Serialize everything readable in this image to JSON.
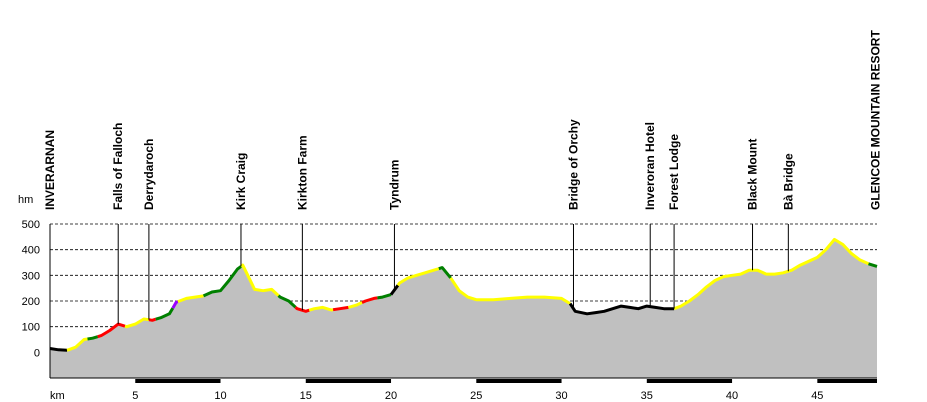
{
  "chart_data": {
    "type": "area",
    "ylabel": "hm",
    "xlabel": "km",
    "ylim": [
      -100,
      500
    ],
    "xlim": [
      0,
      48.5
    ],
    "y_ticks": [
      0,
      100,
      200,
      300,
      400,
      500
    ],
    "x_ticks": [
      5,
      10,
      15,
      20,
      25,
      30,
      35,
      40,
      45
    ],
    "grid": "horizontal-dashed",
    "fill_color": "#c0c0c0",
    "waypoints": [
      {
        "name": "INVERARNAN",
        "km": 0.0
      },
      {
        "name": "Falls of Falloch",
        "km": 4.0
      },
      {
        "name": "Derrydaroch",
        "km": 5.8
      },
      {
        "name": "Kirk Craig",
        "km": 11.2
      },
      {
        "name": "Kirkton Farm",
        "km": 14.8
      },
      {
        "name": "Tyndrum",
        "km": 20.2
      },
      {
        "name": "Bridge of Orchy",
        "km": 30.7
      },
      {
        "name": "Inveroran Hotel",
        "km": 35.2
      },
      {
        "name": "Forest Lodge",
        "km": 36.6
      },
      {
        "name": "Black Mount",
        "km": 41.2
      },
      {
        "name": "Bà Bridge",
        "km": 43.3
      },
      {
        "name": "GLENCOE MOUNTAIN RESORT",
        "km": 48.4
      }
    ],
    "profile": [
      [
        0.0,
        15
      ],
      [
        0.5,
        10
      ],
      [
        1.0,
        8
      ],
      [
        1.5,
        20
      ],
      [
        2.0,
        50
      ],
      [
        2.5,
        55
      ],
      [
        3.0,
        65
      ],
      [
        3.5,
        85
      ],
      [
        4.0,
        110
      ],
      [
        4.5,
        100
      ],
      [
        5.0,
        110
      ],
      [
        5.5,
        130
      ],
      [
        6.0,
        125
      ],
      [
        6.5,
        135
      ],
      [
        7.0,
        150
      ],
      [
        7.4,
        195
      ],
      [
        8.0,
        210
      ],
      [
        8.5,
        215
      ],
      [
        9.0,
        220
      ],
      [
        9.5,
        235
      ],
      [
        10.0,
        240
      ],
      [
        10.5,
        280
      ],
      [
        11.0,
        325
      ],
      [
        11.3,
        340
      ],
      [
        11.6,
        300
      ],
      [
        12.0,
        245
      ],
      [
        12.5,
        240
      ],
      [
        13.0,
        245
      ],
      [
        13.5,
        215
      ],
      [
        14.0,
        200
      ],
      [
        14.5,
        170
      ],
      [
        15.0,
        160
      ],
      [
        15.5,
        170
      ],
      [
        16.0,
        175
      ],
      [
        16.5,
        165
      ],
      [
        17.0,
        170
      ],
      [
        17.5,
        175
      ],
      [
        18.0,
        185
      ],
      [
        18.5,
        200
      ],
      [
        19.0,
        210
      ],
      [
        19.5,
        215
      ],
      [
        20.0,
        225
      ],
      [
        20.5,
        270
      ],
      [
        21.0,
        290
      ],
      [
        21.5,
        300
      ],
      [
        22.0,
        310
      ],
      [
        22.5,
        320
      ],
      [
        23.0,
        330
      ],
      [
        23.5,
        290
      ],
      [
        24.0,
        240
      ],
      [
        24.5,
        215
      ],
      [
        25.0,
        205
      ],
      [
        26.0,
        205
      ],
      [
        27.0,
        210
      ],
      [
        28.0,
        215
      ],
      [
        29.0,
        215
      ],
      [
        30.0,
        210
      ],
      [
        30.5,
        190
      ],
      [
        30.8,
        160
      ],
      [
        31.5,
        150
      ],
      [
        32.0,
        155
      ],
      [
        32.5,
        160
      ],
      [
        33.0,
        170
      ],
      [
        33.5,
        180
      ],
      [
        34.0,
        175
      ],
      [
        34.5,
        170
      ],
      [
        35.0,
        180
      ],
      [
        35.5,
        175
      ],
      [
        36.0,
        170
      ],
      [
        36.6,
        170
      ],
      [
        37.0,
        180
      ],
      [
        37.5,
        200
      ],
      [
        38.0,
        225
      ],
      [
        38.5,
        255
      ],
      [
        39.0,
        280
      ],
      [
        39.5,
        295
      ],
      [
        40.0,
        300
      ],
      [
        40.5,
        305
      ],
      [
        41.0,
        320
      ],
      [
        41.5,
        320
      ],
      [
        42.0,
        305
      ],
      [
        42.5,
        305
      ],
      [
        43.0,
        310
      ],
      [
        43.5,
        320
      ],
      [
        44.0,
        340
      ],
      [
        44.5,
        355
      ],
      [
        45.0,
        370
      ],
      [
        45.5,
        400
      ],
      [
        46.0,
        440
      ],
      [
        46.5,
        420
      ],
      [
        47.0,
        385
      ],
      [
        47.5,
        360
      ],
      [
        48.0,
        345
      ],
      [
        48.5,
        335
      ]
    ],
    "segment_colors": [
      {
        "from": 0.0,
        "to": 1.0,
        "color": "#000000"
      },
      {
        "from": 1.0,
        "to": 2.2,
        "color": "#ffff00"
      },
      {
        "from": 2.2,
        "to": 2.8,
        "color": "#008000"
      },
      {
        "from": 2.8,
        "to": 4.4,
        "color": "#ff0000"
      },
      {
        "from": 4.4,
        "to": 5.8,
        "color": "#ffff00"
      },
      {
        "from": 5.8,
        "to": 6.2,
        "color": "#ff0000"
      },
      {
        "from": 6.2,
        "to": 7.2,
        "color": "#008000"
      },
      {
        "from": 7.2,
        "to": 7.5,
        "color": "#9900ff"
      },
      {
        "from": 7.5,
        "to": 9.0,
        "color": "#ffff00"
      },
      {
        "from": 9.0,
        "to": 11.2,
        "color": "#008000"
      },
      {
        "from": 11.2,
        "to": 13.4,
        "color": "#ffff00"
      },
      {
        "from": 13.4,
        "to": 14.4,
        "color": "#008000"
      },
      {
        "from": 14.4,
        "to": 15.2,
        "color": "#ff0000"
      },
      {
        "from": 15.2,
        "to": 16.6,
        "color": "#ffff00"
      },
      {
        "from": 16.6,
        "to": 17.5,
        "color": "#ff0000"
      },
      {
        "from": 17.5,
        "to": 18.3,
        "color": "#ffff00"
      },
      {
        "from": 18.3,
        "to": 19.2,
        "color": "#ff0000"
      },
      {
        "from": 19.2,
        "to": 20.0,
        "color": "#008000"
      },
      {
        "from": 20.0,
        "to": 20.4,
        "color": "#000000"
      },
      {
        "from": 20.4,
        "to": 22.8,
        "color": "#ffff00"
      },
      {
        "from": 22.8,
        "to": 23.5,
        "color": "#008000"
      },
      {
        "from": 23.5,
        "to": 30.5,
        "color": "#ffff00"
      },
      {
        "from": 30.5,
        "to": 36.6,
        "color": "#000000"
      },
      {
        "from": 36.6,
        "to": 48.0,
        "color": "#ffff00"
      },
      {
        "from": 48.0,
        "to": 48.5,
        "color": "#008000"
      }
    ]
  }
}
